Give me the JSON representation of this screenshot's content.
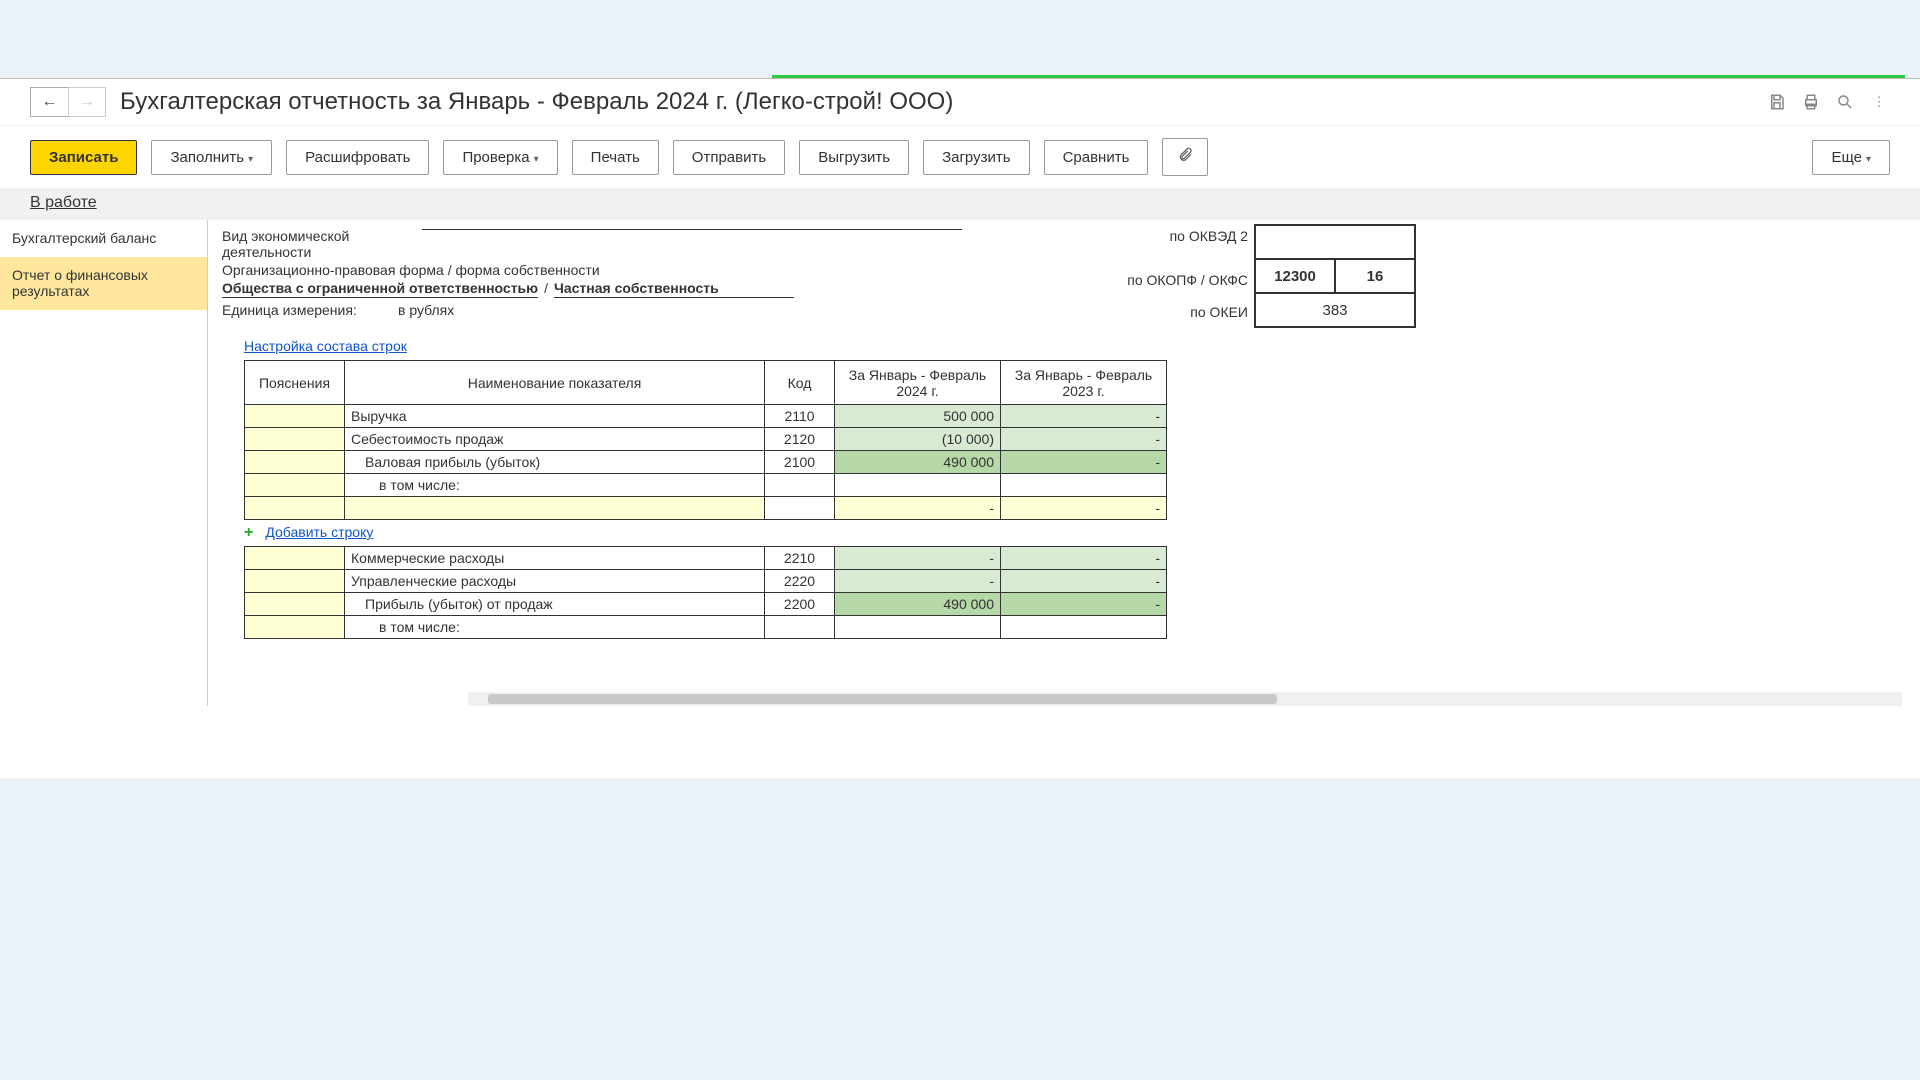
{
  "title": "Бухгалтерская отчетность за Январь - Февраль 2024 г. (Легко-строй! ООО)",
  "toolbar": {
    "primary": "Записать",
    "fill": "Заполнить",
    "decode": "Расшифровать",
    "check": "Проверка",
    "print": "Печать",
    "send": "Отправить",
    "export": "Выгрузить",
    "import": "Загрузить",
    "compare": "Сравнить",
    "more": "Еще"
  },
  "status": "В работе",
  "sidebar": {
    "items": [
      {
        "label": "Бухгалтерский баланс"
      },
      {
        "label": "Отчет о финансовых результатах"
      }
    ]
  },
  "header": {
    "activity_label": "Вид экономической деятельности",
    "legal_label": "Организационно-правовая форма / форма собственности",
    "legal_form": "Общества с ограниченной ответственностью",
    "legal_sep": "/",
    "ownership": "Частная собственность",
    "unit_label": "Единица измерения:",
    "unit": "в рублях",
    "right": {
      "okved": "по ОКВЭД 2",
      "okopf": "по ОКОПФ / ОКФС",
      "okei": "по ОКЕИ"
    },
    "codes": {
      "okved": "",
      "okopf": "12300",
      "okfs": "16",
      "okei": "383"
    }
  },
  "links": {
    "config_rows": "Настройка состава строк",
    "add_row": "Добавить строку"
  },
  "table": {
    "columns": {
      "expl": "Пояснения",
      "name": "Наименование показателя",
      "code": "Код",
      "period1": "За Январь - Февраль 2024 г.",
      "period2": "За Январь - Февраль 2023 г."
    },
    "rows1": [
      {
        "name": "Выручка",
        "code": "2110",
        "v1": "500 000",
        "v2": "-",
        "bg1": "bg-green1",
        "bg2": "bg-green1"
      },
      {
        "name": "Себестоимость продаж",
        "code": "2120",
        "v1": "(10 000)",
        "v2": "-",
        "bg1": "bg-green1",
        "bg2": "bg-green1"
      },
      {
        "name": "Валовая прибыль (убыток)",
        "code": "2100",
        "v1": "490 000",
        "v2": "-",
        "bg1": "bg-green2",
        "bg2": "bg-green2",
        "indent": "indent1"
      },
      {
        "name": "в том числе:",
        "code": "",
        "v1": "",
        "v2": "",
        "bg1": "",
        "bg2": "",
        "indent": "indent2"
      },
      {
        "name": "",
        "code": "",
        "v1": "-",
        "v2": "-",
        "bg1": "bg-yellow",
        "bg2": "bg-yellow",
        "namebg": "bg-yellow"
      }
    ],
    "rows2": [
      {
        "name": "Коммерческие расходы",
        "code": "2210",
        "v1": "-",
        "v2": "-",
        "bg1": "bg-green1",
        "bg2": "bg-green1"
      },
      {
        "name": "Управленческие расходы",
        "code": "2220",
        "v1": "-",
        "v2": "-",
        "bg1": "bg-green1",
        "bg2": "bg-green1"
      },
      {
        "name": "Прибыль (убыток) от продаж",
        "code": "2200",
        "v1": "490 000",
        "v2": "-",
        "bg1": "bg-green2",
        "bg2": "bg-green2",
        "indent": "indent1"
      },
      {
        "name": "в том числе:",
        "code": "",
        "v1": "",
        "v2": "",
        "bg1": "",
        "bg2": "",
        "indent": "indent2"
      }
    ]
  }
}
